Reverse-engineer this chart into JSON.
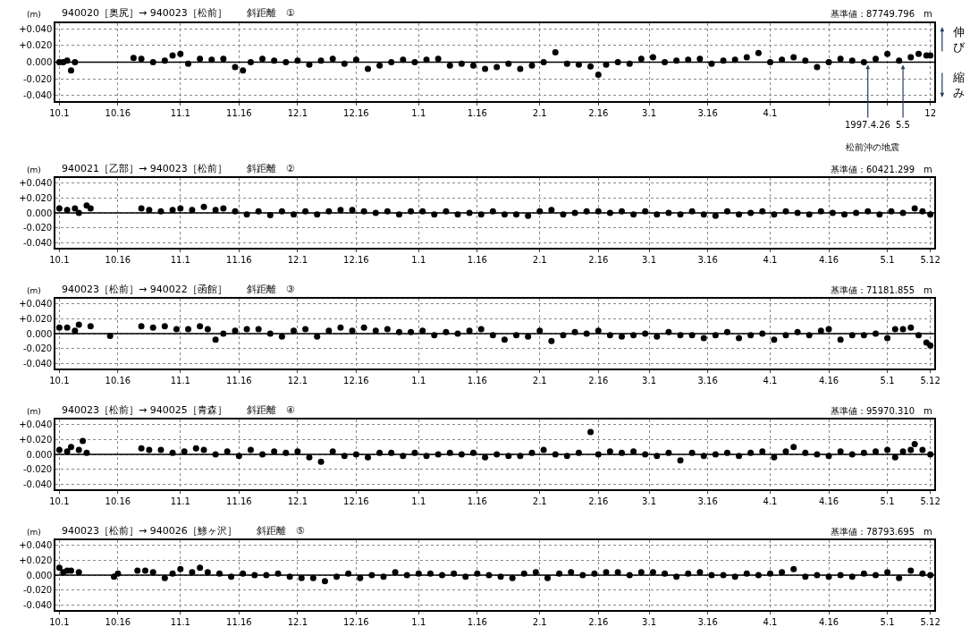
{
  "chart_data": [
    {
      "type": "scatter",
      "title": "940020［奥尻］→ 940023［松前］　　斜距離　①",
      "subtitle": "基準値：87749.796　m",
      "ylabel": "(m)",
      "marker": "circle",
      "grid": true,
      "xlim": [
        "1996-09-30",
        "1997-05-13"
      ],
      "ylim": [
        -0.047,
        0.047
      ],
      "xticks": [
        {
          "value": "1996-10-01",
          "label": "10.1"
        },
        {
          "value": "1996-10-16",
          "label": "10.16"
        },
        {
          "value": "1996-11-01",
          "label": "11.1"
        },
        {
          "value": "1996-11-16",
          "label": "11.16"
        },
        {
          "value": "1996-12-01",
          "label": "12.1"
        },
        {
          "value": "1996-12-16",
          "label": "12.16"
        },
        {
          "value": "1997-01-01",
          "label": "1.1"
        },
        {
          "value": "1997-01-16",
          "label": "1.16"
        },
        {
          "value": "1997-02-01",
          "label": "2.1"
        },
        {
          "value": "1997-02-16",
          "label": "2.16"
        },
        {
          "value": "1997-03-01",
          "label": "3.1"
        },
        {
          "value": "1997-03-16",
          "label": "3.16"
        },
        {
          "value": "1997-04-01",
          "label": "4.1"
        },
        {
          "value": "1997-04-16",
          "label": null
        },
        {
          "value": "1997-05-01",
          "label": null
        },
        {
          "value": "1997-05-12",
          "label": "12"
        }
      ],
      "yticks": [
        {
          "value": 0.04,
          "label": "+0.040"
        },
        {
          "value": 0.02,
          "label": "+0.020"
        },
        {
          "value": 0,
          "label": "0.000"
        },
        {
          "value": -0.02,
          "label": "-0.020"
        },
        {
          "value": -0.04,
          "label": "-0.040"
        }
      ],
      "ref_lines": [
        {
          "axis": "y",
          "value": 0,
          "color": "#000000"
        }
      ],
      "annotations": [
        {
          "text": "1997.4.26",
          "x": "1997-04-26",
          "y": 0
        },
        {
          "text": "5.5",
          "x": "1997-05-05",
          "y": 0
        },
        "松前沖の地震",
        "伸び",
        "縮み"
      ],
      "series": [
        {
          "color": "#000000",
          "x": [
            "1996-10-01",
            "1996-10-02",
            "1996-10-03",
            "1996-10-04",
            "1996-10-05",
            "1996-10-20",
            "1996-10-22",
            "1996-10-25",
            "1996-10-28",
            "1996-10-30",
            "1996-11-01",
            "1996-11-03",
            "1996-11-06",
            "1996-11-09",
            "1996-11-12",
            "1996-11-15",
            "1996-11-17",
            "1996-11-19",
            "1996-11-22",
            "1996-11-25",
            "1996-11-28",
            "1996-12-01",
            "1996-12-04",
            "1996-12-07",
            "1996-12-10",
            "1996-12-13",
            "1996-12-16",
            "1996-12-19",
            "1996-12-22",
            "1996-12-25",
            "1996-12-28",
            "1996-12-31",
            "1997-01-03",
            "1997-01-06",
            "1997-01-09",
            "1997-01-12",
            "1997-01-15",
            "1997-01-18",
            "1997-01-21",
            "1997-01-24",
            "1997-01-27",
            "1997-01-30",
            "1997-02-02",
            "1997-02-05",
            "1997-02-08",
            "1997-02-11",
            "1997-02-14",
            "1997-02-16",
            "1997-02-18",
            "1997-02-21",
            "1997-02-24",
            "1997-02-27",
            "1997-03-02",
            "1997-03-05",
            "1997-03-08",
            "1997-03-11",
            "1997-03-14",
            "1997-03-17",
            "1997-03-20",
            "1997-03-23",
            "1997-03-26",
            "1997-03-29",
            "1997-04-01",
            "1997-04-04",
            "1997-04-07",
            "1997-04-10",
            "1997-04-13",
            "1997-04-16",
            "1997-04-19",
            "1997-04-22",
            "1997-04-25",
            "1997-04-28",
            "1997-05-01",
            "1997-05-04",
            "1997-05-07",
            "1997-05-09",
            "1997-05-11",
            "1997-05-12"
          ],
          "values": [
            0,
            0,
            0.002,
            -0.01,
            0,
            0.005,
            0.004,
            0,
            0.002,
            0.008,
            0.01,
            -0.002,
            0.004,
            0.003,
            0.004,
            -0.006,
            -0.01,
            0,
            0.004,
            0.002,
            0,
            0.002,
            -0.003,
            0.002,
            0.004,
            -0.002,
            0.003,
            -0.008,
            -0.004,
            0,
            0.003,
            0,
            0.003,
            0.004,
            -0.004,
            -0.002,
            -0.004,
            -0.008,
            -0.006,
            -0.002,
            -0.008,
            -0.004,
            0,
            0.012,
            -0.002,
            -0.003,
            -0.005,
            -0.015,
            -0.003,
            0,
            -0.002,
            0.004,
            0.006,
            0,
            0.002,
            0.003,
            0.004,
            -0.002,
            0.002,
            0.003,
            0.006,
            0.011,
            0,
            0.003,
            0.006,
            0.002,
            -0.006,
            0,
            0.004,
            0.002,
            0,
            0.004,
            0.01,
            0.002,
            0.006,
            0.01,
            0.008,
            0.008
          ]
        }
      ]
    },
    {
      "type": "scatter",
      "title": "940021［乙部］→ 940023［松前］　　斜距離　②",
      "subtitle": "基準値：60421.299　m",
      "ylabel": "(m)",
      "marker": "circle",
      "grid": true,
      "xlim": [
        "1996-09-30",
        "1997-05-13"
      ],
      "ylim": [
        -0.047,
        0.047
      ],
      "xticks": [
        {
          "value": "1996-10-01",
          "label": "10.1"
        },
        {
          "value": "1996-10-16",
          "label": "10.16"
        },
        {
          "value": "1996-11-01",
          "label": "11.1"
        },
        {
          "value": "1996-11-16",
          "label": "11.16"
        },
        {
          "value": "1996-12-01",
          "label": "12.1"
        },
        {
          "value": "1996-12-16",
          "label": "12.16"
        },
        {
          "value": "1997-01-01",
          "label": "1.1"
        },
        {
          "value": "1997-01-16",
          "label": "1.16"
        },
        {
          "value": "1997-02-01",
          "label": "2.1"
        },
        {
          "value": "1997-02-16",
          "label": "2.16"
        },
        {
          "value": "1997-03-01",
          "label": "3.1"
        },
        {
          "value": "1997-03-16",
          "label": "3.16"
        },
        {
          "value": "1997-04-01",
          "label": "4.1"
        },
        {
          "value": "1997-04-16",
          "label": "4.16"
        },
        {
          "value": "1997-05-01",
          "label": "5.1"
        },
        {
          "value": "1997-05-12",
          "label": "5.12"
        }
      ],
      "yticks": [
        {
          "value": 0.04,
          "label": "+0.040"
        },
        {
          "value": 0.02,
          "label": "+0.020"
        },
        {
          "value": 0,
          "label": "0.000"
        },
        {
          "value": -0.02,
          "label": "-0.020"
        },
        {
          "value": -0.04,
          "label": "-0.040"
        }
      ],
      "ref_lines": [
        {
          "axis": "y",
          "value": 0,
          "color": "#000000"
        }
      ],
      "series": [
        {
          "color": "#000000",
          "x": [
            "1996-10-01",
            "1996-10-03",
            "1996-10-05",
            "1996-10-06",
            "1996-10-08",
            "1996-10-09",
            "1996-10-22",
            "1996-10-24",
            "1996-10-27",
            "1996-10-30",
            "1996-11-01",
            "1996-11-04",
            "1996-11-07",
            "1996-11-10",
            "1996-11-12",
            "1996-11-15",
            "1996-11-18",
            "1996-11-21",
            "1996-11-24",
            "1996-11-27",
            "1996-11-30",
            "1996-12-03",
            "1996-12-06",
            "1996-12-09",
            "1996-12-12",
            "1996-12-15",
            "1996-12-18",
            "1996-12-21",
            "1996-12-24",
            "1996-12-27",
            "1996-12-30",
            "1997-01-02",
            "1997-01-05",
            "1997-01-08",
            "1997-01-11",
            "1997-01-14",
            "1997-01-17",
            "1997-01-20",
            "1997-01-23",
            "1997-01-26",
            "1997-01-29",
            "1997-02-01",
            "1997-02-04",
            "1997-02-07",
            "1997-02-10",
            "1997-02-13",
            "1997-02-16",
            "1997-02-19",
            "1997-02-22",
            "1997-02-25",
            "1997-02-28",
            "1997-03-03",
            "1997-03-06",
            "1997-03-09",
            "1997-03-12",
            "1997-03-15",
            "1997-03-18",
            "1997-03-21",
            "1997-03-24",
            "1997-03-27",
            "1997-03-30",
            "1997-04-02",
            "1997-04-05",
            "1997-04-08",
            "1997-04-11",
            "1997-04-14",
            "1997-04-17",
            "1997-04-20",
            "1997-04-23",
            "1997-04-26",
            "1997-04-29",
            "1997-05-02",
            "1997-05-05",
            "1997-05-08",
            "1997-05-10",
            "1997-05-12"
          ],
          "values": [
            0.006,
            0.004,
            0.006,
            0,
            0.01,
            0.006,
            0.006,
            0.004,
            0.002,
            0.004,
            0.006,
            0.004,
            0.008,
            0.004,
            0.006,
            0.002,
            -0.002,
            0.002,
            -0.003,
            0.002,
            -0.002,
            0.002,
            -0.002,
            0.002,
            0.004,
            0.004,
            0.002,
            0,
            0.002,
            -0.002,
            0.002,
            0.002,
            -0.002,
            0.002,
            -0.002,
            0,
            -0.002,
            0.002,
            -0.002,
            -0.002,
            -0.004,
            0.002,
            0.004,
            -0.002,
            0,
            0.002,
            0.002,
            0,
            0.002,
            -0.002,
            0.002,
            -0.002,
            0,
            -0.002,
            0.002,
            -0.002,
            -0.004,
            0.002,
            -0.002,
            0,
            0.002,
            -0.002,
            0.002,
            0,
            -0.002,
            0.002,
            0,
            -0.002,
            0,
            0.002,
            -0.002,
            0.002,
            0,
            0.006,
            0.002,
            -0.002
          ]
        }
      ]
    },
    {
      "type": "scatter",
      "title": "940023［松前］→ 940022［函館］　　斜距離　③",
      "subtitle": "基準値：71181.855　m",
      "ylabel": "(m)",
      "marker": "circle",
      "grid": true,
      "xlim": [
        "1996-09-30",
        "1997-05-13"
      ],
      "ylim": [
        -0.047,
        0.047
      ],
      "xticks": [
        {
          "value": "1996-10-01",
          "label": "10.1"
        },
        {
          "value": "1996-10-16",
          "label": "10.16"
        },
        {
          "value": "1996-11-01",
          "label": "11.1"
        },
        {
          "value": "1996-11-16",
          "label": "11.16"
        },
        {
          "value": "1996-12-01",
          "label": "12.1"
        },
        {
          "value": "1996-12-16",
          "label": "12.16"
        },
        {
          "value": "1997-01-01",
          "label": "1.1"
        },
        {
          "value": "1997-01-16",
          "label": "1.16"
        },
        {
          "value": "1997-02-01",
          "label": "2.1"
        },
        {
          "value": "1997-02-16",
          "label": "2.16"
        },
        {
          "value": "1997-03-01",
          "label": "3.1"
        },
        {
          "value": "1997-03-16",
          "label": "3.16"
        },
        {
          "value": "1997-04-01",
          "label": "4.1"
        },
        {
          "value": "1997-04-16",
          "label": "4.16"
        },
        {
          "value": "1997-05-01",
          "label": "5.1"
        },
        {
          "value": "1997-05-12",
          "label": "5.12"
        }
      ],
      "yticks": [
        {
          "value": 0.04,
          "label": "+0.040"
        },
        {
          "value": 0.02,
          "label": "+0.020"
        },
        {
          "value": 0,
          "label": "0.000"
        },
        {
          "value": -0.02,
          "label": "-0.020"
        },
        {
          "value": -0.04,
          "label": "-0.040"
        }
      ],
      "ref_lines": [
        {
          "axis": "y",
          "value": 0,
          "color": "#000000"
        }
      ],
      "series": [
        {
          "color": "#000000",
          "x": [
            "1996-10-01",
            "1996-10-03",
            "1996-10-05",
            "1996-10-06",
            "1996-10-09",
            "1996-10-14",
            "1996-10-22",
            "1996-10-25",
            "1996-10-28",
            "1996-10-31",
            "1996-11-03",
            "1996-11-06",
            "1996-11-08",
            "1996-11-10",
            "1996-11-12",
            "1996-11-15",
            "1996-11-18",
            "1996-11-21",
            "1996-11-24",
            "1996-11-27",
            "1996-11-30",
            "1996-12-03",
            "1996-12-06",
            "1996-12-09",
            "1996-12-12",
            "1996-12-15",
            "1996-12-18",
            "1996-12-21",
            "1996-12-24",
            "1996-12-27",
            "1996-12-30",
            "1997-01-02",
            "1997-01-05",
            "1997-01-08",
            "1997-01-11",
            "1997-01-14",
            "1997-01-17",
            "1997-01-20",
            "1997-01-23",
            "1997-01-26",
            "1997-01-29",
            "1997-02-01",
            "1997-02-04",
            "1997-02-07",
            "1997-02-10",
            "1997-02-13",
            "1997-02-16",
            "1997-02-19",
            "1997-02-22",
            "1997-02-25",
            "1997-02-28",
            "1997-03-03",
            "1997-03-06",
            "1997-03-09",
            "1997-03-12",
            "1997-03-15",
            "1997-03-18",
            "1997-03-21",
            "1997-03-24",
            "1997-03-27",
            "1997-03-30",
            "1997-04-02",
            "1997-04-05",
            "1997-04-08",
            "1997-04-11",
            "1997-04-14",
            "1997-04-16",
            "1997-04-19",
            "1997-04-22",
            "1997-04-25",
            "1997-04-28",
            "1997-05-01",
            "1997-05-03",
            "1997-05-05",
            "1997-05-07",
            "1997-05-09",
            "1997-05-11",
            "1997-05-12"
          ],
          "values": [
            0.008,
            0.008,
            0.004,
            0.012,
            0.01,
            -0.003,
            0.01,
            0.008,
            0.01,
            0.006,
            0.006,
            0.01,
            0.006,
            -0.008,
            0,
            0.004,
            0.006,
            0.006,
            0,
            -0.004,
            0.004,
            0.006,
            -0.004,
            0.004,
            0.008,
            0.004,
            0.008,
            0.004,
            0.006,
            0.002,
            0.002,
            0.004,
            -0.002,
            0.002,
            0,
            0.004,
            0.006,
            -0.002,
            -0.008,
            -0.002,
            -0.004,
            0.004,
            -0.01,
            -0.002,
            0.002,
            0,
            0.004,
            -0.002,
            -0.004,
            -0.002,
            0,
            -0.004,
            0.002,
            -0.002,
            -0.002,
            -0.006,
            -0.002,
            0.002,
            -0.006,
            -0.002,
            0,
            -0.008,
            -0.002,
            0.002,
            -0.002,
            0.004,
            0.006,
            -0.008,
            -0.002,
            -0.002,
            0,
            -0.006,
            0.006,
            0.006,
            0.008,
            -0.002,
            -0.012,
            -0.016
          ]
        }
      ]
    },
    {
      "type": "scatter",
      "title": "940023［松前］→ 940025［青森］　　斜距離　④",
      "subtitle": "基準値：95970.310　m",
      "ylabel": "(m)",
      "marker": "circle",
      "grid": true,
      "xlim": [
        "1996-09-30",
        "1997-05-13"
      ],
      "ylim": [
        -0.047,
        0.047
      ],
      "xticks": [
        {
          "value": "1996-10-01",
          "label": "10.1"
        },
        {
          "value": "1996-10-16",
          "label": "10.16"
        },
        {
          "value": "1996-11-01",
          "label": "11.1"
        },
        {
          "value": "1996-11-16",
          "label": "11.16"
        },
        {
          "value": "1996-12-01",
          "label": "12.1"
        },
        {
          "value": "1996-12-16",
          "label": "12.16"
        },
        {
          "value": "1997-01-01",
          "label": "1.1"
        },
        {
          "value": "1997-01-16",
          "label": "1.16"
        },
        {
          "value": "1997-02-01",
          "label": "2.1"
        },
        {
          "value": "1997-02-16",
          "label": "2.16"
        },
        {
          "value": "1997-03-01",
          "label": "3.1"
        },
        {
          "value": "1997-03-16",
          "label": "3.16"
        },
        {
          "value": "1997-04-01",
          "label": "4.1"
        },
        {
          "value": "1997-04-16",
          "label": "4.16"
        },
        {
          "value": "1997-05-01",
          "label": "5.1"
        },
        {
          "value": "1997-05-12",
          "label": "5.12"
        }
      ],
      "yticks": [
        {
          "value": 0.04,
          "label": "+0.040"
        },
        {
          "value": 0.02,
          "label": "+0.020"
        },
        {
          "value": 0,
          "label": "0.000"
        },
        {
          "value": -0.02,
          "label": "-0.020"
        },
        {
          "value": -0.04,
          "label": "-0.040"
        }
      ],
      "ref_lines": [
        {
          "axis": "y",
          "value": 0,
          "color": "#000000"
        }
      ],
      "series": [
        {
          "color": "#000000",
          "x": [
            "1996-10-01",
            "1996-10-03",
            "1996-10-04",
            "1996-10-06",
            "1996-10-07",
            "1996-10-08",
            "1996-10-22",
            "1996-10-24",
            "1996-10-27",
            "1996-10-30",
            "1996-11-02",
            "1996-11-05",
            "1996-11-07",
            "1996-11-10",
            "1996-11-13",
            "1996-11-16",
            "1996-11-19",
            "1996-11-22",
            "1996-11-25",
            "1996-11-28",
            "1996-12-01",
            "1996-12-04",
            "1996-12-07",
            "1996-12-10",
            "1996-12-13",
            "1996-12-16",
            "1996-12-19",
            "1996-12-22",
            "1996-12-25",
            "1996-12-28",
            "1996-12-31",
            "1997-01-03",
            "1997-01-06",
            "1997-01-09",
            "1997-01-12",
            "1997-01-15",
            "1997-01-18",
            "1997-01-21",
            "1997-01-24",
            "1997-01-27",
            "1997-01-30",
            "1997-02-02",
            "1997-02-05",
            "1997-02-08",
            "1997-02-11",
            "1997-02-14",
            "1997-02-16",
            "1997-02-19",
            "1997-02-22",
            "1997-02-25",
            "1997-02-28",
            "1997-03-03",
            "1997-03-06",
            "1997-03-09",
            "1997-03-12",
            "1997-03-15",
            "1997-03-18",
            "1997-03-21",
            "1997-03-24",
            "1997-03-27",
            "1997-03-30",
            "1997-04-02",
            "1997-04-05",
            "1997-04-07",
            "1997-04-10",
            "1997-04-13",
            "1997-04-16",
            "1997-04-19",
            "1997-04-22",
            "1997-04-25",
            "1997-04-28",
            "1997-05-01",
            "1997-05-03",
            "1997-05-05",
            "1997-05-07",
            "1997-05-08",
            "1997-05-10",
            "1997-05-12"
          ],
          "values": [
            0.006,
            0.004,
            0.01,
            0.006,
            0.018,
            0.002,
            0.008,
            0.006,
            0.006,
            0.002,
            0.004,
            0.008,
            0.006,
            0,
            0.004,
            -0.002,
            0.006,
            0,
            0.004,
            0.002,
            0.004,
            -0.004,
            -0.01,
            0.004,
            -0.002,
            0,
            -0.004,
            0.002,
            0.002,
            -0.002,
            0.002,
            -0.002,
            0,
            0.002,
            0,
            0.002,
            -0.004,
            0,
            -0.002,
            -0.002,
            0.002,
            0.006,
            0,
            -0.002,
            0.002,
            0.03,
            0,
            0.004,
            0.002,
            0.004,
            0,
            -0.002,
            0.002,
            -0.008,
            0.002,
            -0.002,
            0,
            0.002,
            -0.002,
            0.002,
            0.004,
            -0.004,
            0.004,
            0.01,
            0.002,
            0,
            -0.002,
            0.004,
            0,
            0.002,
            0.004,
            0.006,
            -0.004,
            0.004,
            0.006,
            0.014,
            0.006,
            0
          ]
        }
      ]
    },
    {
      "type": "scatter",
      "title": "940023［松前］→ 940026［鯵ヶ沢］　　斜距離　⑤",
      "subtitle": "基準値：78793.695　m",
      "ylabel": "(m)",
      "marker": "circle",
      "grid": true,
      "xlim": [
        "1996-09-30",
        "1997-05-13"
      ],
      "ylim": [
        -0.047,
        0.047
      ],
      "xticks": [
        {
          "value": "1996-10-01",
          "label": "10.1"
        },
        {
          "value": "1996-10-16",
          "label": "10.16"
        },
        {
          "value": "1996-11-01",
          "label": "11.1"
        },
        {
          "value": "1996-11-16",
          "label": "11.16"
        },
        {
          "value": "1996-12-01",
          "label": "12.1"
        },
        {
          "value": "1996-12-16",
          "label": "12.16"
        },
        {
          "value": "1997-01-01",
          "label": "1.1"
        },
        {
          "value": "1997-01-16",
          "label": "1.16"
        },
        {
          "value": "1997-02-01",
          "label": "2.1"
        },
        {
          "value": "1997-02-16",
          "label": "2.16"
        },
        {
          "value": "1997-03-01",
          "label": "3.1"
        },
        {
          "value": "1997-03-16",
          "label": "3.16"
        },
        {
          "value": "1997-04-01",
          "label": "4.1"
        },
        {
          "value": "1997-04-16",
          "label": "4.16"
        },
        {
          "value": "1997-05-01",
          "label": "5.1"
        },
        {
          "value": "1997-05-12",
          "label": "5.12"
        }
      ],
      "yticks": [
        {
          "value": 0.04,
          "label": "+0.040"
        },
        {
          "value": 0.02,
          "label": "+0.020"
        },
        {
          "value": 0,
          "label": "0.000"
        },
        {
          "value": -0.02,
          "label": "-0.020"
        },
        {
          "value": -0.04,
          "label": "-0.040"
        }
      ],
      "ref_lines": [
        {
          "axis": "y",
          "value": 0,
          "color": "#000000"
        }
      ],
      "series": [
        {
          "color": "#000000",
          "x": [
            "1996-10-01",
            "1996-10-02",
            "1996-10-03",
            "1996-10-04",
            "1996-10-06",
            "1996-10-15",
            "1996-10-16",
            "1996-10-21",
            "1996-10-23",
            "1996-10-25",
            "1996-10-28",
            "1996-10-30",
            "1996-11-01",
            "1996-11-04",
            "1996-11-06",
            "1996-11-08",
            "1996-11-11",
            "1996-11-14",
            "1996-11-17",
            "1996-11-20",
            "1996-11-23",
            "1996-11-26",
            "1996-11-29",
            "1996-12-02",
            "1996-12-05",
            "1996-12-08",
            "1996-12-11",
            "1996-12-14",
            "1996-12-17",
            "1996-12-20",
            "1996-12-23",
            "1996-12-26",
            "1996-12-29",
            "1997-01-01",
            "1997-01-04",
            "1997-01-07",
            "1997-01-10",
            "1997-01-13",
            "1997-01-16",
            "1997-01-19",
            "1997-01-22",
            "1997-01-25",
            "1997-01-28",
            "1997-01-31",
            "1997-02-03",
            "1997-02-06",
            "1997-02-09",
            "1997-02-12",
            "1997-02-15",
            "1997-02-18",
            "1997-02-21",
            "1997-02-24",
            "1997-02-27",
            "1997-03-02",
            "1997-03-05",
            "1997-03-08",
            "1997-03-11",
            "1997-03-14",
            "1997-03-17",
            "1997-03-20",
            "1997-03-23",
            "1997-03-26",
            "1997-03-29",
            "1997-04-01",
            "1997-04-04",
            "1997-04-07",
            "1997-04-10",
            "1997-04-13",
            "1997-04-16",
            "1997-04-19",
            "1997-04-22",
            "1997-04-25",
            "1997-04-28",
            "1997-05-01",
            "1997-05-04",
            "1997-05-07",
            "1997-05-10",
            "1997-05-12"
          ],
          "values": [
            0.01,
            0.004,
            0.006,
            0.006,
            0.004,
            -0.002,
            0.002,
            0.006,
            0.006,
            0.004,
            -0.004,
            0.002,
            0.008,
            0.004,
            0.01,
            0.004,
            0.002,
            -0.002,
            0.002,
            0,
            0,
            0.002,
            -0.002,
            -0.004,
            -0.004,
            -0.008,
            -0.002,
            0.002,
            -0.004,
            0,
            -0.002,
            0.004,
            0,
            0.002,
            0.002,
            0,
            0.002,
            -0.002,
            0.002,
            0,
            -0.002,
            -0.004,
            0.002,
            0.004,
            -0.004,
            0.002,
            0.004,
            0,
            0.002,
            0.004,
            0.004,
            0,
            0.004,
            0.004,
            0.002,
            -0.002,
            0.002,
            0.004,
            0,
            0,
            -0.002,
            0.002,
            0,
            0.002,
            0.004,
            0.008,
            -0.002,
            0,
            -0.002,
            0,
            -0.002,
            0.002,
            0,
            0.004,
            -0.004,
            0.006,
            0.002,
            0
          ]
        }
      ]
    }
  ]
}
